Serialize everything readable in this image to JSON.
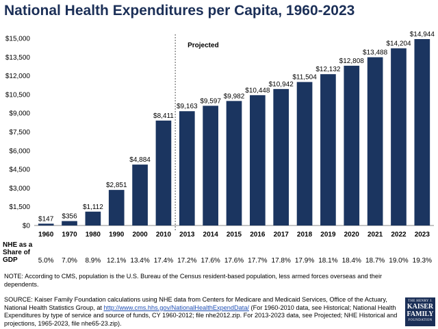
{
  "title": "National Health Expenditures per Capita, 1960-2023",
  "chart_data": {
    "type": "bar",
    "categories": [
      "1960",
      "1970",
      "1980",
      "1990",
      "2000",
      "2010",
      "2013",
      "2014",
      "2015",
      "2016",
      "2017",
      "2018",
      "2019",
      "2020",
      "2021",
      "2022",
      "2023"
    ],
    "values": [
      147,
      356,
      1112,
      2851,
      4884,
      8411,
      9163,
      9597,
      9982,
      10448,
      10942,
      11504,
      12132,
      12808,
      13488,
      14204,
      14944
    ],
    "value_labels": [
      "$147",
      "$356",
      "$1,112",
      "$2,851",
      "$4,884",
      "$8,411",
      "$9,163",
      "$9,597",
      "$9,982",
      "$10,448",
      "$10,942",
      "$11,504",
      "$12,132",
      "$12,808",
      "$13,488",
      "$14,204",
      "$14,944"
    ],
    "ylim": [
      0,
      15000
    ],
    "yticks": [
      0,
      1500,
      3000,
      4500,
      6000,
      7500,
      9000,
      10500,
      12000,
      13500,
      15000
    ],
    "ytick_labels": [
      "$0",
      "$1,500",
      "$3,000",
      "$4,500",
      "$6,000",
      "$7,500",
      "$9,000",
      "$10,500",
      "$12,000",
      "$13,500",
      "$15,000"
    ],
    "grid": false,
    "bar_color": "#1b3560",
    "projected_label": "Projected",
    "projected_from": "2013",
    "gdp_share_header": [
      "NHE as a",
      "Share of",
      "GDP"
    ],
    "gdp_share": [
      "5.0%",
      "7.0%",
      "8.9%",
      "12.1%",
      "13.4%",
      "17.4%",
      "17.2%",
      "17.6%",
      "17.6%",
      "17.7%",
      "17.8%",
      "17.9%",
      "18.1%",
      "18.4%",
      "18.7%",
      "19.0%",
      "19.3%"
    ]
  },
  "note": "NOTE: According to CMS, population is the U.S. Bureau of the Census resident-based population, less armed forces overseas and their dependents.",
  "source": {
    "before": "SOURCE: Kaiser Family Foundation calculations using NHE data from Centers for Medicare and Medicaid Services, Office of the Actuary, National Health Statistics Group, at ",
    "link": "http://www.cms.hhs.gov/NationalHealthExpendData/",
    "after": " (For 1960-2010 data, see Historical; National Health Expenditures by type of service and source of funds, CY 1960-2012; file nhe2012.zip. For 2013-2023 data, see Projected; NHE Historical and projections, 1965-2023, file nhe65-23.zip)."
  },
  "logo": {
    "line1": "THE HENRY J.",
    "line2a": "KAISER",
    "line2b": "FAMILY",
    "line3": "FOUNDATION"
  }
}
